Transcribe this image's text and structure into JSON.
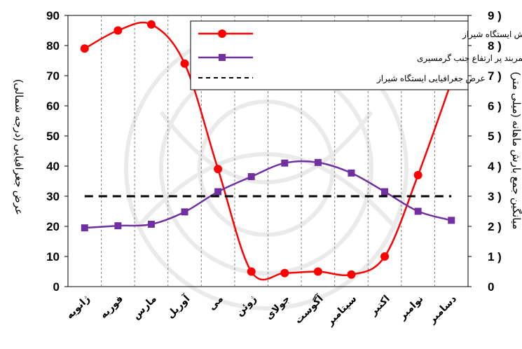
{
  "chart_data": {
    "type": "line",
    "categories": [
      "ژانویه",
      "فوریه",
      "مارس",
      "آوریل",
      "می",
      "ژوئن",
      "جولای",
      "آگوست",
      "سپتامبر",
      "اکتبر",
      "نوامبر",
      "دسامبر"
    ],
    "series": [
      {
        "name": "میانگین تعداد روزهای همراه با بارش ایستگاه شیراز",
        "values": [
          79,
          85,
          87,
          74,
          39,
          5,
          4.5,
          5,
          4,
          10,
          37,
          68
        ],
        "color": "#ff0000",
        "marker": "circle",
        "smooth": true
      },
      {
        "name": "موقعیت کمربند پر ارتفاع جنب گرمسیری",
        "values": [
          19.5,
          20.2,
          20.7,
          24.8,
          31.5,
          36.5,
          41,
          41.2,
          37.7,
          31.5,
          25,
          22
        ],
        "color": "#7030a0",
        "marker": "square",
        "smooth": true
      },
      {
        "name": "عرض جغرافیایی ایستگاه شیراز",
        "values": [
          30,
          30,
          30,
          30,
          30,
          30,
          30,
          30,
          30,
          30,
          30,
          30
        ],
        "color": "#000000",
        "dashed": true
      }
    ],
    "y_left": {
      "label": "عرض جغرافیایی (درجه شمالی)",
      "ticks": [
        "0",
        "10",
        "20",
        "30",
        "40",
        "50",
        "60",
        "70",
        "80",
        "90"
      ],
      "range": [
        0,
        90
      ]
    },
    "y_right": {
      "label": "میانگین جمع بارش ماهانه (میلی متر)",
      "ticks": [
        "0",
        "1 )",
        "2 )",
        "3 )",
        "4 )",
        "5 )",
        "6 )",
        "7 )",
        "8 )",
        "9 )"
      ],
      "range": [
        0,
        9
      ]
    },
    "legend_position": "top-right",
    "grid": "vertical dashed"
  }
}
